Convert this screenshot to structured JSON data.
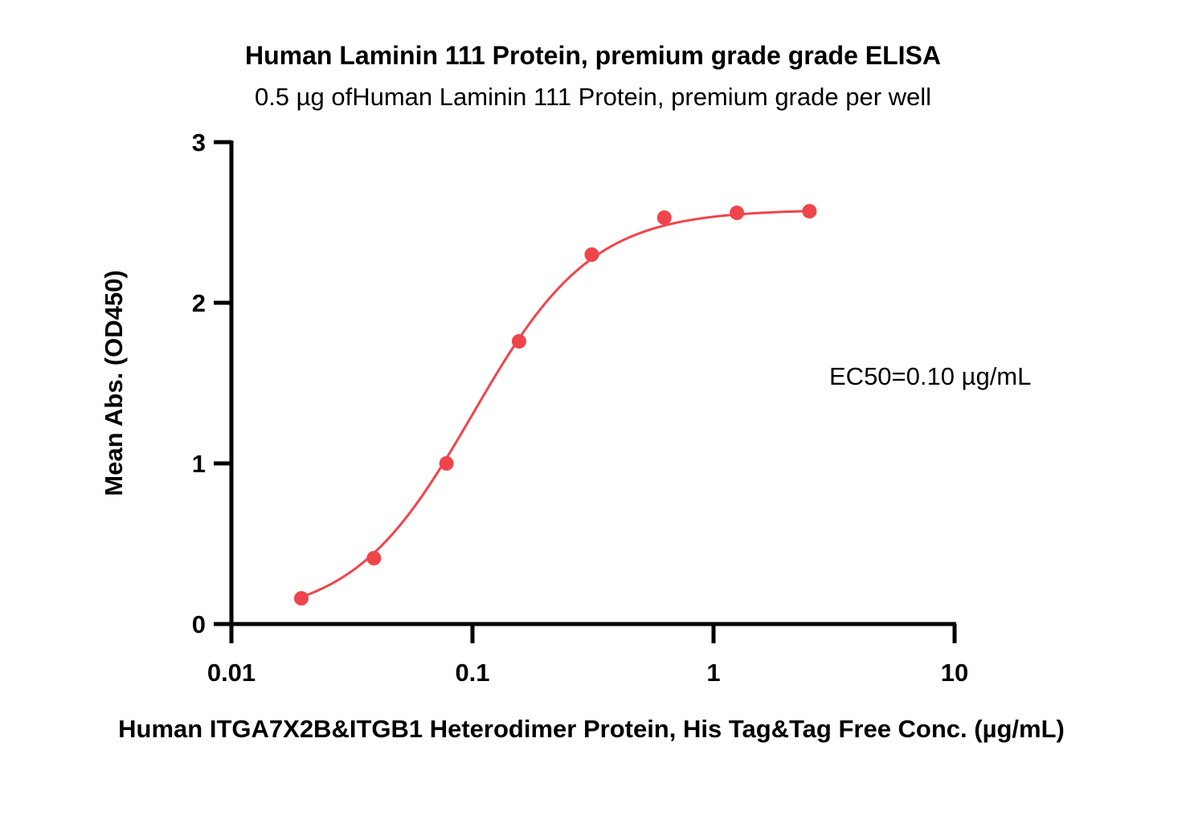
{
  "chart_data": {
    "type": "scatter",
    "title": "Human Laminin 111 Protein, premium grade grade ELISA",
    "subtitle": "0.5 µg ofHuman Laminin 111 Protein, premium grade per well",
    "xlabel": "Human ITGA7X2B&ITGB1 Heterodimer Protein, His Tag&Tag Free Conc. (µg/mL)",
    "ylabel": "Mean Abs. (OD450)",
    "x_scale": "log",
    "xlim": [
      0.01,
      10
    ],
    "ylim": [
      0,
      3
    ],
    "x_ticks": [
      {
        "value": 0.01,
        "label": "0.01"
      },
      {
        "value": 0.1,
        "label": "0.1"
      },
      {
        "value": 1,
        "label": "1"
      },
      {
        "value": 10,
        "label": "10"
      }
    ],
    "y_ticks": [
      {
        "value": 0,
        "label": "0"
      },
      {
        "value": 1,
        "label": "1"
      },
      {
        "value": 2,
        "label": "2"
      },
      {
        "value": 3,
        "label": "3"
      }
    ],
    "grid": false,
    "series": [
      {
        "color": "#f0444b",
        "x": [
          0.0195,
          0.039,
          0.078,
          0.156,
          0.3125,
          0.625,
          1.25,
          2.5
        ],
        "y": [
          0.16,
          0.41,
          1.0,
          1.76,
          2.3,
          2.53,
          2.56,
          2.57
        ]
      }
    ],
    "fit_curve": {
      "model": "4PL",
      "bottom": 0.03,
      "top": 2.58,
      "ec50": 0.1,
      "hill": 1.75,
      "color": "#f0444b"
    },
    "annotations": [
      {
        "text": "EC50=0.10 µg/mL"
      }
    ]
  }
}
